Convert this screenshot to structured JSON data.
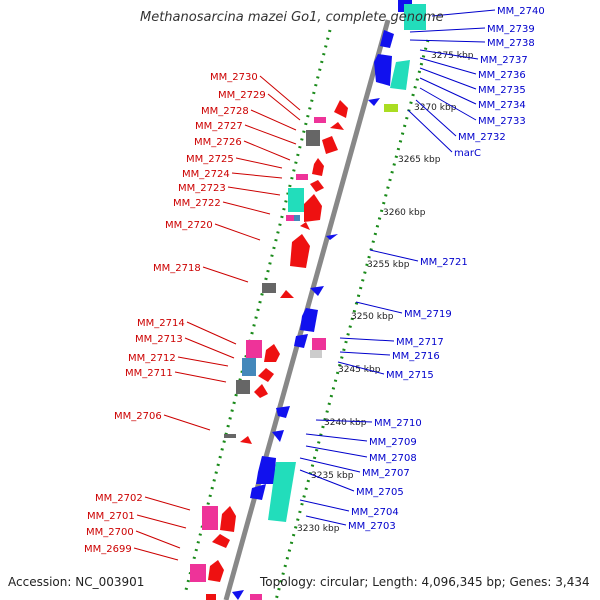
{
  "title": "Methanosarcina mazei Go1, complete genome",
  "accession": "Accession: NC_003901",
  "stats": "Topology: circular; Length: 4,096,345 bp; Genes: 3,434",
  "colors": {
    "backbone": "#888888",
    "ticks": "#1a8a1a",
    "left_labels": "#cc0000",
    "right_labels": "#0000cc",
    "gene_red": "#ee1111",
    "gene_blue": "#1111ee",
    "gene_pink": "#ee3399",
    "gene_cyan": "#22ddbb",
    "gene_gray": "#666666",
    "gene_steel": "#4488bb",
    "gene_lime": "#aadd22",
    "gene_lightgray": "#cccccc"
  },
  "scale_labels": [
    "3275 kbp",
    "3270 kbp",
    "3265 kbp",
    "3260 kbp",
    "3255 kbp",
    "3250 kbp",
    "3245 kbp",
    "3240 kbp",
    "3235 kbp",
    "3230 kbp"
  ],
  "left_genes": [
    "MM_2730",
    "MM_2729",
    "MM_2728",
    "MM_2727",
    "MM_2726",
    "MM_2725",
    "MM_2724",
    "MM_2723",
    "MM_2722",
    "MM_2720",
    "MM_2718",
    "MM_2714",
    "MM_2713",
    "MM_2712",
    "MM_2711",
    "MM_2706",
    "MM_2702",
    "MM_2701",
    "MM_2700",
    "MM_2699"
  ],
  "right_genes": [
    "MM_2740",
    "MM_2739",
    "MM_2738",
    "MM_2737",
    "MM_2736",
    "MM_2735",
    "MM_2734",
    "MM_2733",
    "MM_2732",
    "marC",
    "MM_2721",
    "MM_2719",
    "MM_2717",
    "MM_2716",
    "MM_2715",
    "MM_2710",
    "MM_2709",
    "MM_2708",
    "MM_2707",
    "MM_2705",
    "MM_2704",
    "MM_2703"
  ]
}
